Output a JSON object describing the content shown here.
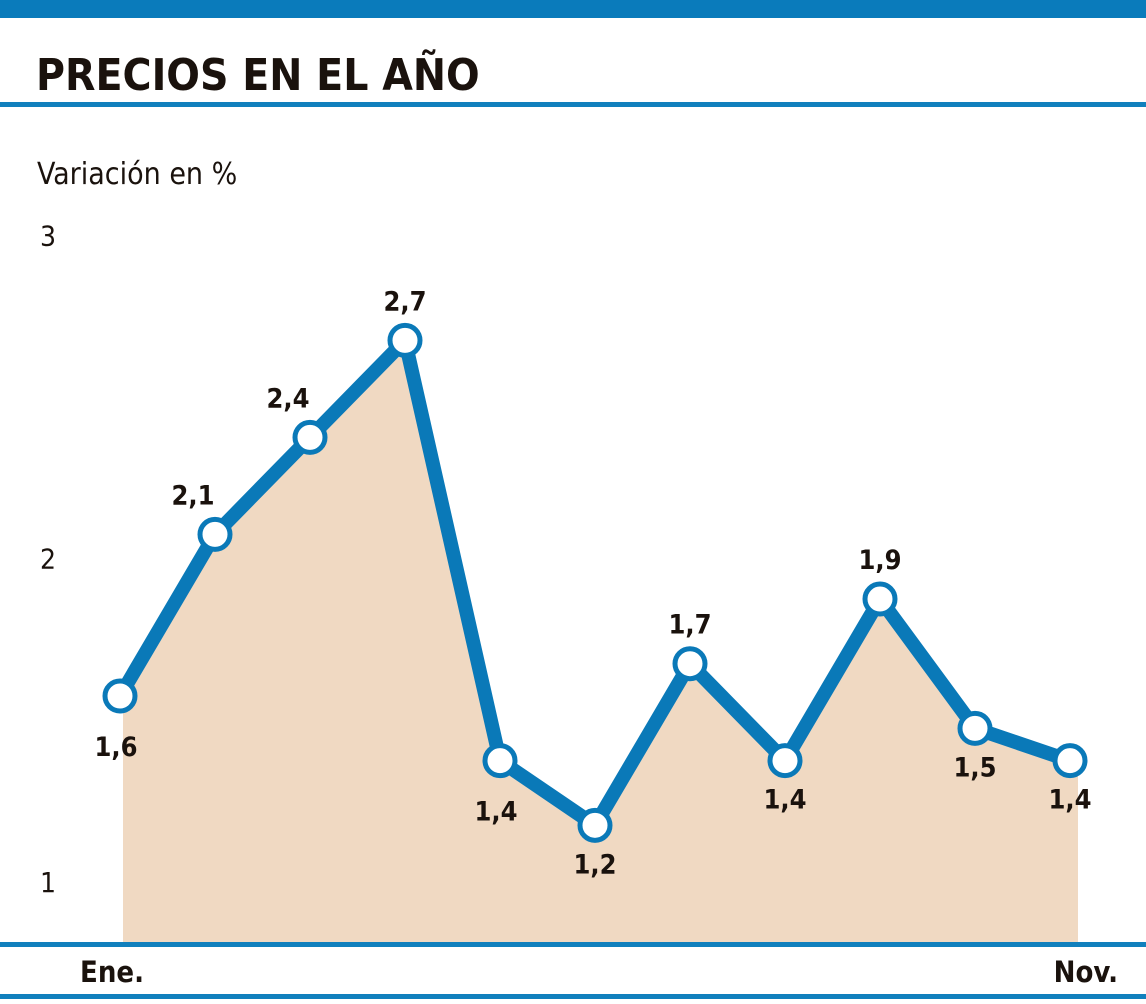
{
  "header": {
    "title": "PRECIOS EN EL AÑO"
  },
  "chart_data": {
    "type": "area",
    "title": "PRECIOS EN EL AÑO",
    "ylabel": "Variación en %",
    "ylim": [
      0.8,
      3
    ],
    "yticks": [
      "1",
      "2",
      "3"
    ],
    "ytick_values": [
      1,
      2,
      3
    ],
    "x_tick_labels": [
      "Ene.",
      "Nov."
    ],
    "values": [
      1.6,
      2.1,
      2.4,
      2.7,
      1.4,
      1.2,
      1.7,
      1.4,
      1.9,
      1.5,
      1.4
    ],
    "data_labels": [
      "1,6",
      "2,1",
      "2,4",
      "2,7",
      "1,4",
      "1,2",
      "1,7",
      "1,4",
      "1,9",
      "1,5",
      "1,4"
    ],
    "label_positions": [
      "below-left",
      "above-left",
      "above-left",
      "above",
      "below-left",
      "below",
      "above",
      "below",
      "above",
      "below",
      "below"
    ],
    "grid": false,
    "colors": {
      "line": "#0a79b8",
      "fill": "#f0d9c2",
      "marker_fill": "#ffffff",
      "rule": "#0a79b8"
    }
  }
}
